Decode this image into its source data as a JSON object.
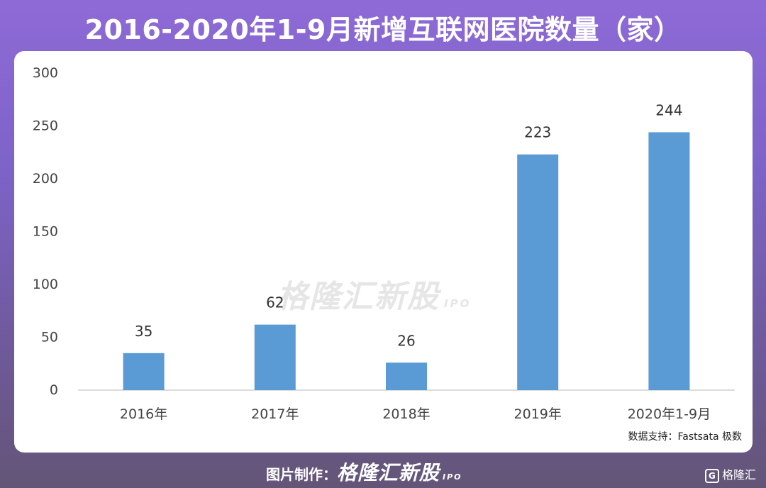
{
  "header": {
    "title": "2016-2020年1-9月新增互联网医院数量（家）"
  },
  "chart_data": {
    "type": "bar",
    "categories": [
      "2016年",
      "2017年",
      "2018年",
      "2019年",
      "2020年1-9月"
    ],
    "values": [
      35,
      62,
      26,
      223,
      244
    ],
    "value_labels": [
      "35",
      "62",
      "26",
      "223",
      "244"
    ],
    "ylim": [
      0,
      300
    ],
    "yticks": [
      0,
      50,
      100,
      150,
      200,
      250,
      300
    ],
    "ytick_labels": [
      "0",
      "50",
      "100",
      "150",
      "200",
      "250",
      "300"
    ],
    "grid": false,
    "bar_color": "#5b9bd5"
  },
  "watermark": {
    "brand": "格隆汇新股",
    "suffix": "IPO"
  },
  "source": {
    "text": "数据支持：Fastsata 极数"
  },
  "footer": {
    "credit_label": "图片制作：",
    "brand": "格隆汇新股",
    "suffix": "IPO"
  },
  "corner_logo": {
    "glyph": "G",
    "text": "格隆汇"
  },
  "colors": {
    "background": "#7d63c8",
    "bar": "#5b9bd5",
    "panel": "#ffffff"
  }
}
